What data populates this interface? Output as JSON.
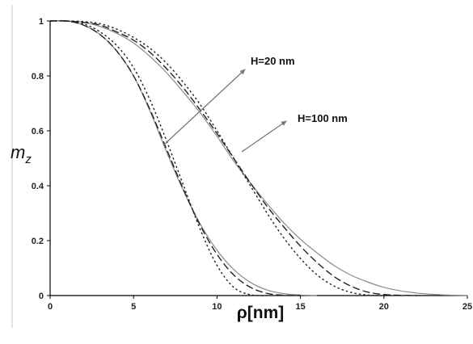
{
  "chart_data": {
    "type": "line",
    "title": "",
    "xlabel": "ρ[nm]",
    "ylabel": {
      "main": "m",
      "sub": "z"
    },
    "xlim": [
      0,
      25
    ],
    "ylim": [
      0,
      1
    ],
    "xticks": [
      "0",
      "5",
      "10",
      "15",
      "20",
      "25"
    ],
    "yticks": [
      "0",
      "0.2",
      "0.4",
      "0.6",
      "0.8",
      "1"
    ],
    "grid": false,
    "legend": "none",
    "annotations": [
      {
        "text": "H=20 nm"
      },
      {
        "text": "H=100 nm"
      }
    ],
    "series": [
      {
        "group": "H=20 nm",
        "style": "solid",
        "color": "#8a8a8a",
        "x": [
          0,
          1,
          2,
          3,
          4,
          5,
          6,
          7,
          8,
          9,
          10,
          11,
          12,
          13,
          14,
          15,
          16
        ],
        "values": [
          1,
          1,
          0.985,
          0.95,
          0.89,
          0.8,
          0.67,
          0.52,
          0.38,
          0.26,
          0.165,
          0.095,
          0.048,
          0.02,
          0.007,
          0.002,
          0
        ]
      },
      {
        "group": "H=20 nm",
        "style": "dashed",
        "color": "#222222",
        "x": [
          0,
          1,
          2,
          3,
          4,
          5,
          6,
          7,
          8,
          9,
          10,
          11,
          12,
          13,
          14,
          15
        ],
        "values": [
          1,
          1,
          0.985,
          0.95,
          0.89,
          0.8,
          0.675,
          0.53,
          0.385,
          0.255,
          0.15,
          0.075,
          0.03,
          0.008,
          0.001,
          0
        ]
      },
      {
        "group": "H=20 nm",
        "style": "dotted",
        "color": "#222222",
        "x": [
          0,
          1,
          2,
          3,
          4,
          5,
          6,
          7,
          8,
          9,
          10,
          11,
          12,
          13
        ],
        "values": [
          1,
          1,
          0.99,
          0.96,
          0.91,
          0.83,
          0.71,
          0.56,
          0.4,
          0.24,
          0.11,
          0.03,
          0.003,
          0
        ]
      },
      {
        "group": "H=100 nm",
        "style": "solid",
        "color": "#8a8a8a",
        "x": [
          0,
          1,
          2,
          3,
          4,
          5,
          6,
          7,
          8,
          9,
          10,
          11,
          12,
          13,
          14,
          15,
          16,
          17,
          18,
          19,
          20,
          21,
          22,
          23,
          24,
          25
        ],
        "values": [
          1,
          1,
          0.995,
          0.98,
          0.955,
          0.92,
          0.87,
          0.81,
          0.74,
          0.665,
          0.58,
          0.49,
          0.41,
          0.335,
          0.265,
          0.205,
          0.155,
          0.11,
          0.075,
          0.05,
          0.03,
          0.017,
          0.009,
          0.004,
          0.0015,
          0
        ]
      },
      {
        "group": "H=100 nm",
        "style": "dashed",
        "color": "#222222",
        "x": [
          0,
          1,
          2,
          3,
          4,
          5,
          6,
          7,
          8,
          9,
          10,
          11,
          12,
          13,
          14,
          15,
          16,
          17,
          18,
          19,
          20,
          21,
          22
        ],
        "values": [
          1,
          1,
          0.995,
          0.985,
          0.96,
          0.93,
          0.885,
          0.825,
          0.755,
          0.675,
          0.59,
          0.5,
          0.41,
          0.325,
          0.25,
          0.18,
          0.12,
          0.07,
          0.035,
          0.013,
          0.004,
          0.001,
          0
        ]
      },
      {
        "group": "H=100 nm",
        "style": "dotted",
        "color": "#222222",
        "x": [
          0,
          1,
          2,
          3,
          4,
          5,
          6,
          7,
          8,
          9,
          10,
          11,
          12,
          13,
          14,
          15,
          16,
          17,
          18,
          19,
          20
        ],
        "values": [
          1,
          1,
          0.998,
          0.99,
          0.97,
          0.94,
          0.9,
          0.845,
          0.775,
          0.695,
          0.6,
          0.5,
          0.4,
          0.3,
          0.21,
          0.135,
          0.075,
          0.035,
          0.012,
          0.002,
          0
        ]
      }
    ]
  }
}
